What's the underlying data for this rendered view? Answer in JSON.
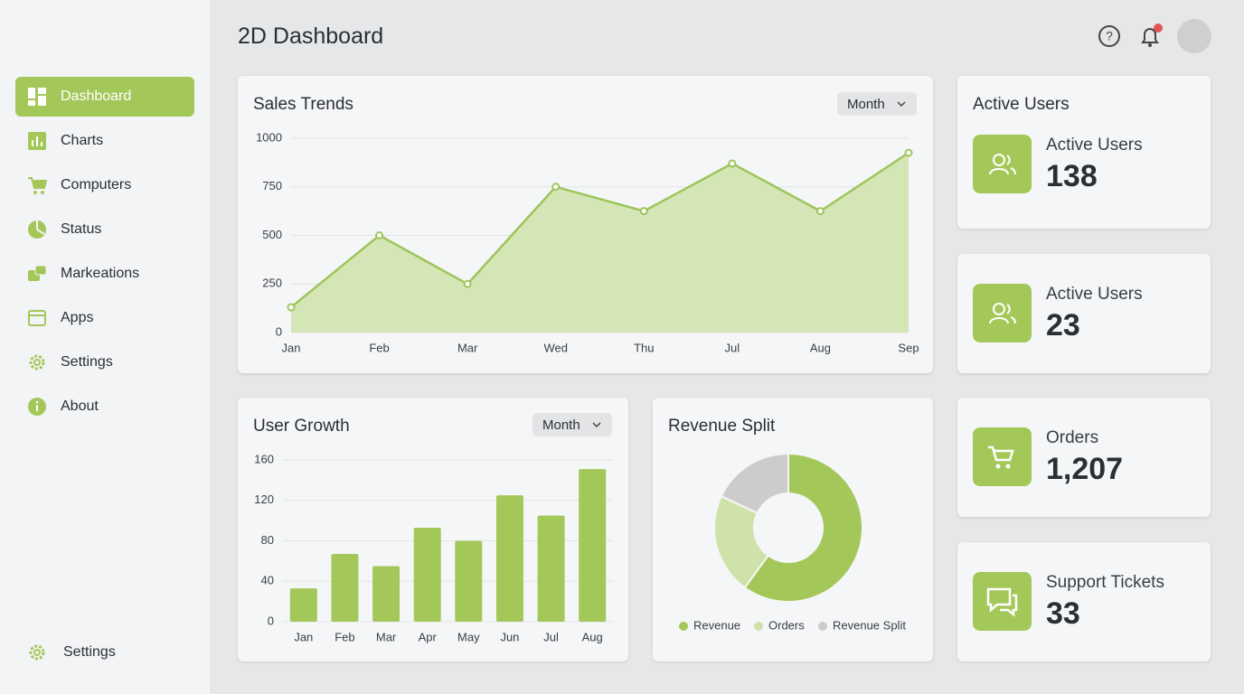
{
  "header": {
    "title": "2D Dashboard"
  },
  "sidebar": {
    "items": [
      "Dashboard",
      "Charts",
      "Computers",
      "Status",
      "Markeations",
      "Apps",
      "Settings",
      "About"
    ],
    "footer": "Settings"
  },
  "chart_data": [
    {
      "type": "line",
      "title": "Sales Trends",
      "filter": "Month",
      "categories": [
        "Jan",
        "Feb",
        "Mar",
        "Wed",
        "Thu",
        "Jul",
        "Aug",
        "Sep"
      ],
      "values": [
        130,
        500,
        250,
        750,
        625,
        870,
        625,
        925
      ],
      "color": "#9dc55a",
      "area_color": "#d5e6b6",
      "ylim": [
        0,
        1000
      ],
      "yticks": [
        0,
        250,
        500,
        750,
        1000
      ],
      "grid": true
    },
    {
      "type": "bar",
      "title": "User Growth",
      "filter": "Month",
      "categories": [
        "Jan",
        "Feb",
        "Mar",
        "Apr",
        "May",
        "Jun",
        "Jul",
        "Aug"
      ],
      "values": [
        33,
        67,
        55,
        93,
        80,
        125,
        105,
        151
      ],
      "color": "#a3c859",
      "ylim": [
        0,
        160
      ],
      "yticks": [
        0,
        40,
        80,
        120,
        160
      ],
      "grid": true
    },
    {
      "type": "pie",
      "title": "Revenue Split",
      "categories": [
        "Revenue",
        "Orders",
        "Revenue Split"
      ],
      "values": [
        60,
        22,
        18
      ],
      "colors": [
        "#a3c859",
        "#cfe2a9",
        "#cccccc"
      ],
      "legend": "bottom"
    }
  ],
  "stats": [
    {
      "title": "Active Users",
      "label": "Active Users",
      "value": "138"
    },
    {
      "label": "Active Users",
      "value": "23"
    },
    {
      "label": "Orders",
      "value": "1,207"
    },
    {
      "label": "Support Tickets",
      "value": "33"
    }
  ]
}
